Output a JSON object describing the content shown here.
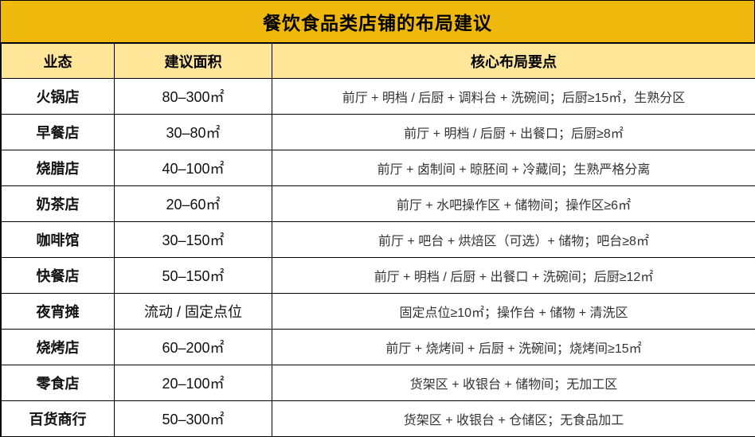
{
  "title": "餐饮食品类店铺的布局建议",
  "colors": {
    "title_bg": "#EFB80D",
    "title_text": "#000000",
    "header_bg": "#FFE699",
    "header_text": "#000000",
    "border": "#000000",
    "strong_text": "#111111",
    "body_text": "#333333"
  },
  "table": {
    "columns": [
      "业态",
      "建议面积",
      "核心布局要点"
    ],
    "rows": [
      {
        "type": "火锅店",
        "area": "80–300㎡",
        "points": "前厅 + 明档 / 后厨 + 调料台 + 洗碗间；后厨≥15㎡，生熟分区"
      },
      {
        "type": "早餐店",
        "area": "30–80㎡",
        "points": "前厅 + 明档 / 后厨 + 出餐口；后厨≥8㎡"
      },
      {
        "type": "烧腊店",
        "area": "40–100㎡",
        "points": "前厅 + 卤制间 + 晾胚间 + 冷藏间；生熟严格分离"
      },
      {
        "type": "奶茶店",
        "area": "20–60㎡",
        "points": "前厅 + 水吧操作区 + 储物间；操作区≥6㎡"
      },
      {
        "type": "咖啡馆",
        "area": "30–150㎡",
        "points": "前厅 + 吧台 + 烘焙区（可选）+ 储物；吧台≥8㎡"
      },
      {
        "type": "快餐店",
        "area": "50–150㎡",
        "points": "前厅 + 明档 / 后厨 + 出餐口 + 洗碗间；后厨≥12㎡"
      },
      {
        "type": "夜宵摊",
        "area": "流动 / 固定点位",
        "points": "固定点位≥10㎡；操作台 + 储物 + 清洗区"
      },
      {
        "type": "烧烤店",
        "area": "60–200㎡",
        "points": "前厅 + 烧烤间 + 后厨 + 洗碗间；烧烤间≥15㎡"
      },
      {
        "type": "零食店",
        "area": "20–100㎡",
        "points": "货架区 + 收银台 + 储物间；无加工区"
      },
      {
        "type": "百货商行",
        "area": "50–300㎡",
        "points": "货架区 + 收银台 + 仓储区；无食品加工"
      }
    ]
  },
  "chart_data": {
    "type": "table",
    "title": "餐饮食品类店铺的布局建议",
    "columns": [
      "业态",
      "建议面积",
      "核心布局要点"
    ],
    "rows": [
      [
        "火锅店",
        "80–300㎡",
        "前厅 + 明档 / 后厨 + 调料台 + 洗碗间；后厨≥15㎡，生熟分区"
      ],
      [
        "早餐店",
        "30–80㎡",
        "前厅 + 明档 / 后厨 + 出餐口；后厨≥8㎡"
      ],
      [
        "烧腊店",
        "40–100㎡",
        "前厅 + 卤制间 + 晾胚间 + 冷藏间；生熟严格分离"
      ],
      [
        "奶茶店",
        "20–60㎡",
        "前厅 + 水吧操作区 + 储物间；操作区≥6㎡"
      ],
      [
        "咖啡馆",
        "30–150㎡",
        "前厅 + 吧台 + 烘焙区（可选）+ 储物；吧台≥8㎡"
      ],
      [
        "快餐店",
        "50–150㎡",
        "前厅 + 明档 / 后厨 + 出餐口 + 洗碗间；后厨≥12㎡"
      ],
      [
        "夜宵摊",
        "流动 / 固定点位",
        "固定点位≥10㎡；操作台 + 储物 + 清洗区"
      ],
      [
        "烧烤店",
        "60–200㎡",
        "前厅 + 烧烤间 + 后厨 + 洗碗间；烧烤间≥15㎡"
      ],
      [
        "零食店",
        "20–100㎡",
        "货架区 + 收银台 + 储物间；无加工区"
      ],
      [
        "百货商行",
        "50–300㎡",
        "货架区 + 收银台 + 仓储区；无食品加工"
      ]
    ]
  }
}
